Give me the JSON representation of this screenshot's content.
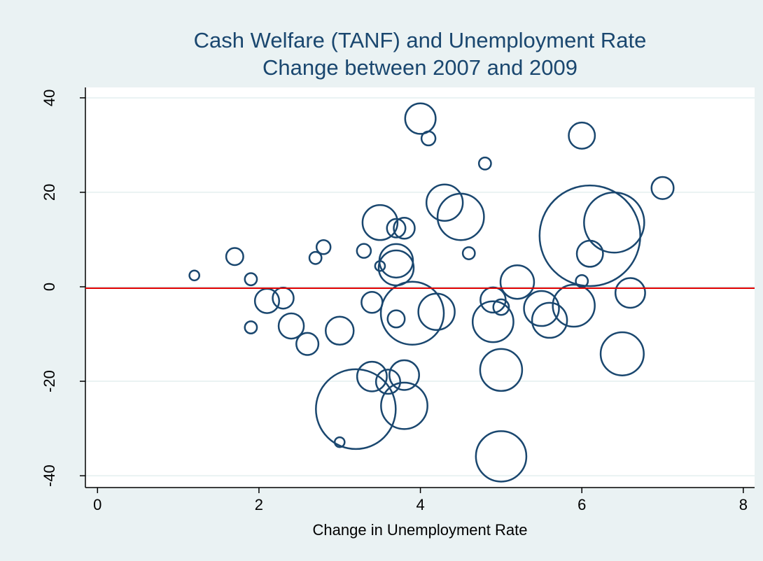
{
  "chart_data": {
    "type": "scatter",
    "title": "Cash Welfare (TANF) and Unemployment Rate",
    "subtitle": "Change between 2007 and 2009",
    "x_label": "Change in Unemployment Rate",
    "x": [
      1.2,
      1.7,
      1.9,
      1.9,
      2.1,
      2.3,
      2.4,
      2.6,
      2.7,
      2.8,
      3.0,
      3.0,
      3.2,
      3.3,
      3.4,
      3.4,
      3.5,
      3.5,
      3.6,
      3.7,
      3.7,
      3.7,
      3.7,
      3.8,
      3.8,
      3.8,
      3.9,
      4.0,
      4.1,
      4.2,
      4.3,
      4.5,
      4.6,
      4.8,
      4.9,
      4.9,
      5.0,
      5.0,
      5.0,
      5.2,
      5.5,
      5.6,
      5.9,
      6.0,
      6.0,
      6.1,
      6.1,
      6.4,
      6.6,
      6.5,
      7.0
    ],
    "values": [
      2.4,
      6.4,
      1.6,
      -8.6,
      -3.0,
      -2.4,
      -8.3,
      -12.1,
      6.1,
      8.4,
      -9.3,
      -32.9,
      -25.9,
      7.6,
      -3.3,
      -19.0,
      13.6,
      4.4,
      -20.1,
      12.4,
      5.5,
      4.0,
      -6.8,
      12.4,
      -25.2,
      -18.7,
      -5.6,
      35.6,
      31.4,
      -5.3,
      17.8,
      14.8,
      7.1,
      26.1,
      -2.8,
      -7.4,
      -4.3,
      -17.6,
      -35.9,
      1.0,
      -4.6,
      -7.1,
      -4.0,
      32.0,
      1.2,
      10.8,
      7.0,
      13.6,
      -1.3,
      -14.2,
      20.9
    ],
    "sizes": [
      2,
      6,
      3,
      3,
      12,
      9,
      13,
      10,
      3,
      4,
      16,
      2,
      130,
      4,
      9,
      18,
      25,
      2,
      12,
      7,
      23,
      25,
      6,
      9,
      44,
      18,
      81,
      19,
      4,
      27,
      27,
      44,
      3,
      3,
      13,
      34,
      5,
      36,
      52,
      23,
      25,
      25,
      36,
      14,
      3,
      207,
      14,
      74,
      18,
      38,
      10
    ],
    "color": "#1a476f",
    "xlim": [
      -0.15,
      8.14
    ],
    "ylim": [
      -42.5,
      42.2
    ],
    "xticks": [
      0,
      2,
      4,
      6,
      8
    ],
    "yticks": [
      -40,
      -20,
      0,
      20,
      40
    ],
    "refline": -0.3,
    "refline_color": "#e00000",
    "grid": true
  }
}
